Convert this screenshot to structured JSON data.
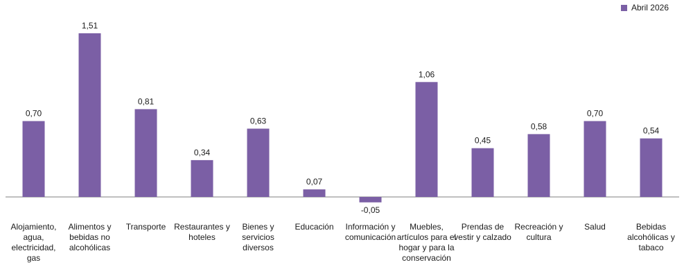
{
  "chart_data": {
    "type": "bar",
    "categories": [
      "Alojamiento, agua, electricidad, gas",
      "Alimentos y bebidas no alcohólicas",
      "Transporte",
      "Restaurantes y hoteles",
      "Bienes y servicios diversos",
      "Educación",
      "Información y comunicación",
      "Muebles, artículos para el hogar y para la conservación",
      "Prendas de vestir y calzado",
      "Recreación y cultura",
      "Salud",
      "Bebidas alcohólicas y tabaco"
    ],
    "value_labels": [
      "0,70",
      "1,51",
      "0,81",
      "0,34",
      "0,63",
      "0,07",
      "-0,05",
      "1,06",
      "0,45",
      "0,58",
      "0,70",
      "0,54"
    ],
    "series": [
      {
        "name": "Abril 2026",
        "values": [
          0.7,
          1.51,
          0.81,
          0.34,
          0.63,
          0.07,
          -0.05,
          1.06,
          0.45,
          0.58,
          0.7,
          0.54
        ]
      }
    ],
    "title": "",
    "xlabel": "",
    "ylabel": "",
    "ylim": [
      -0.2,
      1.6
    ],
    "grid": false,
    "legend_position": "top-right",
    "colors": {
      "bar": "#7B5FA5",
      "axis": "#7f7f7f"
    }
  }
}
